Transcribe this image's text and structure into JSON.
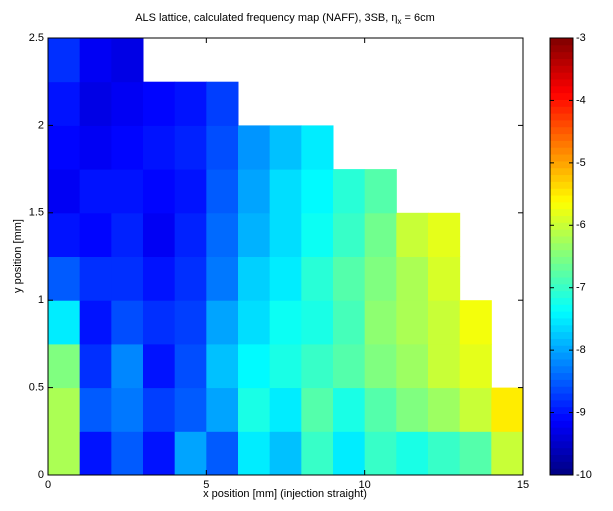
{
  "chart_data": {
    "type": "heatmap",
    "title": {
      "main": "ALS lattice, calculated frequency map (NAFF), 3SB, η",
      "sub": "x",
      "rest": " = 6cm"
    },
    "x_label": "x position [mm] (injection straight)",
    "y_label": "y position [mm]",
    "x": [
      0,
      1,
      2,
      3,
      4,
      5,
      6,
      7,
      8,
      9,
      10,
      11,
      12,
      13,
      14,
      15
    ],
    "y": [
      0,
      0.25,
      0.5,
      0.75,
      1,
      1.25,
      1.5,
      1.75,
      2,
      2.25,
      2.5
    ],
    "z": [
      [
        -6.2,
        -9,
        -8.5,
        -9,
        -8,
        -8.5,
        -7.5,
        -7.8,
        -7,
        -7.5,
        -7,
        -7.2,
        -7,
        -6.8,
        -6
      ],
      [
        -6.2,
        -8.5,
        -8.3,
        -8.7,
        -8.5,
        -8,
        -7.2,
        -7.5,
        -6.8,
        -7.2,
        -6.8,
        -6.5,
        -6.3,
        -6,
        -5.5
      ],
      [
        -6.5,
        -8.8,
        -8.2,
        -9,
        -8.6,
        -7.8,
        -7.4,
        -7.2,
        -7,
        -6.8,
        -6.5,
        -6.3,
        -6,
        -5.8,
        null
      ],
      [
        -7.5,
        -9,
        -8.6,
        -8.8,
        -8.7,
        -8,
        -7.6,
        -7.3,
        -7.2,
        -6.9,
        -6.4,
        -6.2,
        -6,
        -5.7,
        null
      ],
      [
        -8.5,
        -8.8,
        -8.8,
        -9,
        -8.8,
        -8.3,
        -7.7,
        -7.5,
        -7.1,
        -6.8,
        -6.5,
        -6.2,
        -5.9,
        null,
        null
      ],
      [
        -9,
        -9.1,
        -8.9,
        -9.2,
        -8.9,
        -8.4,
        -7.9,
        -7.6,
        -7.3,
        -7,
        -6.6,
        -6,
        -5.8,
        null,
        null
      ],
      [
        -9.2,
        -9,
        -9,
        -9.1,
        -9,
        -8.5,
        -8,
        -7.6,
        -7.4,
        -7.1,
        -6.8,
        null,
        null,
        null,
        null
      ],
      [
        -9.1,
        -9.2,
        -9.1,
        -9,
        -8.9,
        -8.6,
        -8.1,
        -7.8,
        -7.5,
        null,
        null,
        null,
        null,
        null,
        null
      ],
      [
        -9,
        -9.3,
        -9.2,
        -9.1,
        -9,
        -8.7,
        null,
        null,
        null,
        null,
        null,
        null,
        null,
        null,
        null
      ],
      [
        -8.8,
        -9.2,
        -9.3,
        null,
        null,
        null,
        null,
        null,
        null,
        null,
        null,
        null,
        null,
        null,
        null
      ]
    ],
    "colormap": "jet",
    "xlim": [
      0,
      15
    ],
    "ylim": [
      0,
      2.5
    ],
    "xticks": [
      0,
      5,
      10,
      15
    ],
    "yticks": [
      0,
      0.5,
      1,
      1.5,
      2,
      2.5
    ],
    "clim": [
      -10,
      -3
    ],
    "cticks": [
      -10,
      -9,
      -8,
      -7,
      -6,
      -5,
      -4,
      -3
    ]
  }
}
